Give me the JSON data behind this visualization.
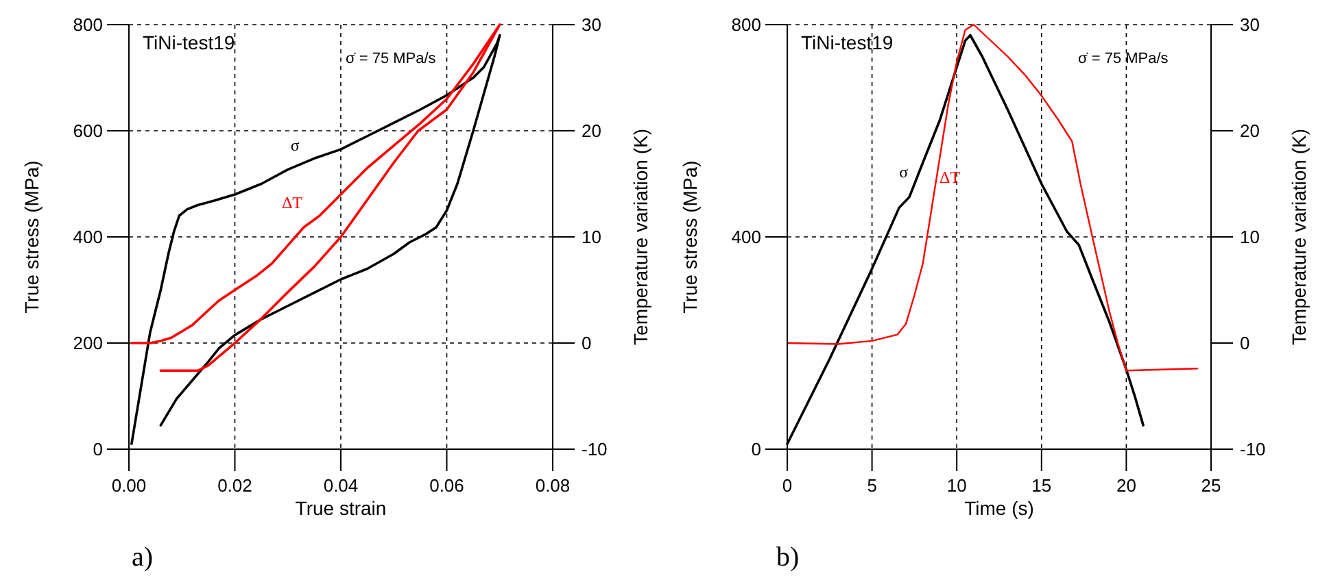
{
  "chart_data": [
    {
      "type": "line",
      "xlabel": "True strain",
      "ylabel": "True stress (MPa)",
      "y2label": "Temperature variation (K)",
      "annotations": [
        "TiNi-test19",
        "σ̇ = 75 MPa/s",
        "a)"
      ],
      "xlim": [
        0,
        0.08
      ],
      "xticks": [
        {
          "value": 0,
          "label": "0.00"
        },
        {
          "value": 0.02,
          "label": "0.02"
        },
        {
          "value": 0.04,
          "label": "0.04"
        },
        {
          "value": 0.06,
          "label": "0.06"
        },
        {
          "value": 0.08,
          "label": "0.08"
        }
      ],
      "ylim": [
        0,
        800
      ],
      "yticks": [
        0,
        200,
        400,
        600,
        800
      ],
      "y2lim": [
        -10,
        30
      ],
      "y2ticks": [
        -10,
        0,
        10,
        20,
        30
      ],
      "grid": true,
      "line_style": "solid",
      "series": [
        {
          "name": "σ",
          "color": "#000000",
          "x": [
            0.0005,
            0.002,
            0.004,
            0.006,
            0.0075,
            0.0085,
            0.0095,
            0.011,
            0.013,
            0.016,
            0.02,
            0.025,
            0.03,
            0.035,
            0.04,
            0.045,
            0.05,
            0.055,
            0.06,
            0.065,
            0.067,
            0.0695,
            0.07,
            0.069,
            0.067,
            0.065,
            0.062,
            0.06,
            0.058,
            0.056,
            0.053,
            0.05,
            0.045,
            0.04,
            0.035,
            0.03,
            0.025,
            0.02,
            0.017,
            0.015,
            0.012,
            0.009,
            0.006
          ],
          "values": [
            10,
            100,
            220,
            300,
            370,
            410,
            440,
            452,
            460,
            468,
            480,
            500,
            527,
            548,
            565,
            590,
            615,
            640,
            667,
            700,
            720,
            765,
            780,
            740,
            670,
            600,
            500,
            450,
            418,
            405,
            390,
            368,
            340,
            320,
            295,
            270,
            245,
            215,
            190,
            165,
            130,
            95,
            45
          ]
        },
        {
          "name": "ΔT",
          "color": "#ff0000",
          "axis": "y2",
          "x": [
            0.0005,
            0.004,
            0.006,
            0.008,
            0.01,
            0.012,
            0.015,
            0.017,
            0.02,
            0.024,
            0.027,
            0.03,
            0.033,
            0.036,
            0.04,
            0.045,
            0.05,
            0.055,
            0.06,
            0.065,
            0.07,
            0.067,
            0.065,
            0.06,
            0.0546,
            0.05,
            0.045,
            0.04,
            0.035,
            0.03,
            0.025,
            0.02,
            0.015,
            0.013,
            0.01,
            0.006
          ],
          "values": [
            0,
            0,
            0.2,
            0.5,
            1.1,
            1.7,
            3.1,
            4.0,
            5.0,
            6.3,
            7.5,
            9.2,
            10.9,
            12.0,
            14.0,
            16.5,
            18.6,
            20.7,
            23.0,
            26.3,
            30,
            27.3,
            25.5,
            22,
            20,
            17,
            13.5,
            10,
            7.2,
            4.8,
            2.3,
            0,
            -2.1,
            -2.6,
            -2.6,
            -2.6
          ]
        }
      ]
    },
    {
      "type": "line",
      "xlabel": "Time (s)",
      "ylabel": "True stress (MPa)",
      "y2label": "Temperature variation (K)",
      "annotations": [
        "TiNi-test19",
        "σ̇ = 75 MPa/s",
        "b)"
      ],
      "xlim": [
        0,
        25
      ],
      "xticks": [
        0,
        5,
        10,
        15,
        20,
        25
      ],
      "ylim": [
        0,
        800
      ],
      "yticks": [
        0,
        400,
        800
      ],
      "y2lim": [
        -10,
        30
      ],
      "y2ticks": [
        -10,
        0,
        10,
        20,
        30
      ],
      "grid": true,
      "line_style": "solid",
      "series": [
        {
          "name": "σ",
          "color": "#000000",
          "x": [
            0,
            2.5,
            5,
            6.6,
            7.2,
            8,
            9,
            10,
            10.5,
            10.8,
            11.5,
            13,
            15,
            16.5,
            17.2,
            18,
            19,
            20,
            20.5,
            21
          ],
          "values": [
            10,
            170,
            340,
            455,
            475,
            540,
            620,
            720,
            770,
            780,
            740,
            640,
            500,
            410,
            385,
            320,
            240,
            150,
            100,
            45
          ]
        },
        {
          "name": "ΔT",
          "color": "#ff0000",
          "axis": "y2",
          "x": [
            0,
            3,
            5,
            6.5,
            7,
            7.5,
            8,
            8.5,
            9,
            9.5,
            10,
            10.5,
            11,
            12,
            13,
            14,
            15,
            16,
            16.8,
            17.3,
            18,
            19,
            19.5,
            20,
            22,
            24.2
          ],
          "values": [
            0,
            -0.1,
            0.2,
            0.8,
            1.8,
            4.5,
            7.5,
            12.5,
            17.5,
            22.5,
            26.5,
            29.5,
            30,
            28.5,
            27,
            25.3,
            23.3,
            21,
            19,
            15,
            10,
            3,
            0,
            -2.6,
            -2.5,
            -2.4
          ]
        }
      ]
    }
  ]
}
